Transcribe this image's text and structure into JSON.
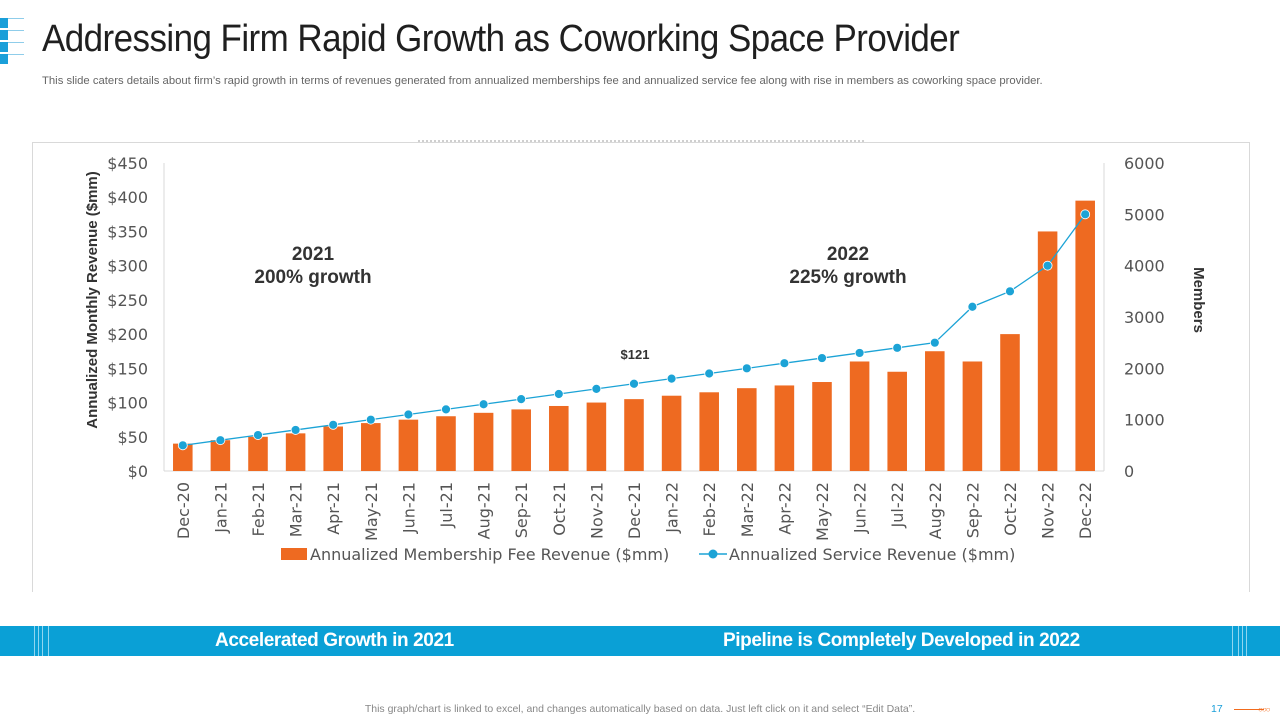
{
  "slide": {
    "title": "Addressing Firm Rapid Growth as Coworking Space Provider",
    "subtitle": "This slide caters details about firm’s rapid growth in terms of revenues  generated from annualized memberships fee and annualized service fee along with rise in members as coworking space provider.",
    "banner_left": "Accelerated Growth in 2021",
    "banner_right": "Pipeline is Completely Developed in 2022",
    "footnote": "This graph/chart is linked to excel,  and changes automatically based on data. Just left click on it and select “Edit Data”.",
    "page_number": "17"
  },
  "colors": {
    "bar": "#ee6a21",
    "line": "#1ca3d6",
    "banner": "#0aa0d6",
    "accent": "#1a9fd9"
  },
  "chart_data": {
    "type": "bar",
    "categories": [
      "Dec-20",
      "Jan-21",
      "Feb-21",
      "Mar-21",
      "Apr-21",
      "May-21",
      "Jun-21",
      "Jul-21",
      "Aug-21",
      "Sep-21",
      "Oct-21",
      "Nov-21",
      "Dec-21",
      "Jan-22",
      "Feb-22",
      "Mar-22",
      "Apr-22",
      "May-22",
      "Jun-22",
      "Jul-22",
      "Aug-22",
      "Sep-22",
      "Oct-22",
      "Nov-22",
      "Dec-22"
    ],
    "series": [
      {
        "name": "Annualized Membership Fee Revenue ($mm)",
        "type": "bar",
        "axis": "left",
        "values": [
          40,
          45,
          50,
          55,
          65,
          70,
          75,
          80,
          85,
          90,
          95,
          100,
          105,
          110,
          115,
          121,
          125,
          130,
          160,
          145,
          175,
          160,
          200,
          350,
          395
        ]
      },
      {
        "name": "Annualized Service Revenue ($mm)",
        "type": "line",
        "axis": "right",
        "values": [
          500,
          600,
          700,
          800,
          900,
          1000,
          1100,
          1200,
          1300,
          1400,
          1500,
          1600,
          1700,
          1800,
          1900,
          2000,
          2100,
          2200,
          2300,
          2400,
          2500,
          3200,
          3500,
          4000,
          5000
        ]
      }
    ],
    "ylabel": "Annualized Monthly Revenue ($mm)",
    "y2label": "Members",
    "ylim": [
      0,
      450
    ],
    "y2lim": [
      0,
      6000
    ],
    "yticks": [
      "$0",
      "$50",
      "$100",
      "$150",
      "$200",
      "$250",
      "$300",
      "$350",
      "$400",
      "$450"
    ],
    "y2ticks": [
      "0",
      "1000",
      "2000",
      "3000",
      "4000",
      "5000",
      "6000"
    ],
    "annotations": [
      {
        "line1": "2021",
        "line2": "200% growth"
      },
      {
        "line1": "2022",
        "line2": "225% growth"
      },
      {
        "text": "$121"
      }
    ],
    "legend": "bottom"
  }
}
